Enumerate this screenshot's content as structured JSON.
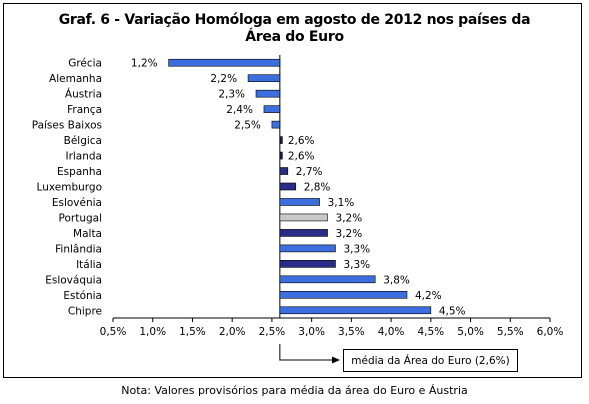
{
  "chart_data": {
    "type": "bar",
    "orientation": "horizontal",
    "title_line1": "Graf. 6 - Variação Homóloga em agosto de 2012 nos países da",
    "title_line2": "Área do Euro",
    "categories": [
      "Grécia",
      "Alemanha",
      "Áustria",
      "França",
      "Países Baixos",
      "Bélgica",
      "Irlanda",
      "Espanha",
      "Luxemburgo",
      "Eslovénia",
      "Portugal",
      "Malta",
      "Finlândia",
      "Itália",
      "Eslováquia",
      "Estónia",
      "Chipre"
    ],
    "values": [
      1.2,
      2.2,
      2.3,
      2.4,
      2.5,
      2.6,
      2.6,
      2.7,
      2.8,
      3.1,
      3.2,
      3.2,
      3.3,
      3.3,
      3.8,
      4.2,
      4.5
    ],
    "value_labels": [
      "1,2%",
      "2,2%",
      "2,3%",
      "2,4%",
      "2,5%",
      "2,6%",
      "2,6%",
      "2,7%",
      "2,8%",
      "3,1%",
      "3,2%",
      "3,2%",
      "3,3%",
      "3,3%",
      "3,8%",
      "4,2%",
      "4,5%"
    ],
    "bar_colors": [
      "#3d6ee0",
      "#3d6ee0",
      "#3d6ee0",
      "#3d6ee0",
      "#3d6ee0",
      "#1a1a4e",
      "#1a1a4e",
      "#2b2b8a",
      "#2b2b8a",
      "#3d6ee0",
      "#c8c8c8",
      "#2b2b8a",
      "#3d6ee0",
      "#2b2b8a",
      "#3d6ee0",
      "#3d6ee0",
      "#3d6ee0"
    ],
    "reference_value": 2.6,
    "reference_label": "média da Área do Euro (2,6%)",
    "xlim": [
      0.5,
      6.0
    ],
    "x_ticks": [
      0.5,
      1.0,
      1.5,
      2.0,
      2.5,
      3.0,
      3.5,
      4.0,
      4.5,
      5.0,
      5.5,
      6.0
    ],
    "x_tick_labels": [
      "0,5%",
      "1,0%",
      "1,5%",
      "2,0%",
      "2,5%",
      "3,0%",
      "3,5%",
      "4,0%",
      "4,5%",
      "5,0%",
      "5,5%",
      "6,0%"
    ],
    "grid": false,
    "legend": "none"
  },
  "note": "Nota: Valores provisórios para média da área do Euro e Áustria"
}
